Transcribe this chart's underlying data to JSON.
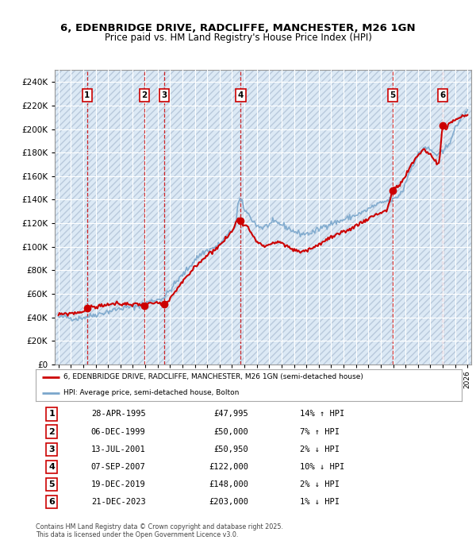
{
  "title_line1": "6, EDENBRIDGE DRIVE, RADCLIFFE, MANCHESTER, M26 1GN",
  "title_line2": "Price paid vs. HM Land Registry's House Price Index (HPI)",
  "ylim": [
    0,
    250000
  ],
  "yticks": [
    0,
    20000,
    40000,
    60000,
    80000,
    100000,
    120000,
    140000,
    160000,
    180000,
    200000,
    220000,
    240000
  ],
  "xlim_start": 1992.7,
  "xlim_end": 2026.3,
  "background_color": "#ffffff",
  "plot_bg_color": "#dce9f5",
  "grid_color": "#ffffff",
  "sale_dates_num": [
    1995.32,
    1999.93,
    2001.54,
    2007.69,
    2019.97,
    2023.98
  ],
  "sale_prices": [
    47995,
    50000,
    50950,
    122000,
    148000,
    203000
  ],
  "sale_labels": [
    "1",
    "2",
    "3",
    "4",
    "5",
    "6"
  ],
  "legend_label_red": "6, EDENBRIDGE DRIVE, RADCLIFFE, MANCHESTER, M26 1GN (semi-detached house)",
  "legend_label_blue": "HPI: Average price, semi-detached house, Bolton",
  "table_data": [
    [
      "1",
      "28-APR-1995",
      "£47,995",
      "14% ↑ HPI"
    ],
    [
      "2",
      "06-DEC-1999",
      "£50,000",
      "7% ↑ HPI"
    ],
    [
      "3",
      "13-JUL-2001",
      "£50,950",
      "2% ↓ HPI"
    ],
    [
      "4",
      "07-SEP-2007",
      "£122,000",
      "10% ↓ HPI"
    ],
    [
      "5",
      "19-DEC-2019",
      "£148,000",
      "2% ↓ HPI"
    ],
    [
      "6",
      "21-DEC-2023",
      "£203,000",
      "1% ↓ HPI"
    ]
  ],
  "footnote": "Contains HM Land Registry data © Crown copyright and database right 2025.\nThis data is licensed under the Open Government Licence v3.0.",
  "red_color": "#cc0000",
  "blue_color": "#7ba7cc",
  "dashed_color": "#cc0000"
}
